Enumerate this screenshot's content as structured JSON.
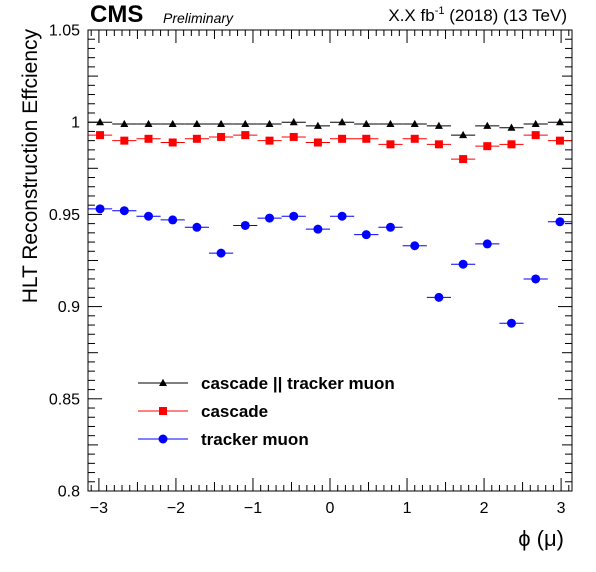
{
  "header": {
    "experiment": "CMS",
    "status": "Preliminary",
    "lumi_prefix": "X.X fb",
    "lumi_exp": "-1",
    "lumi_suffix": " (2018) (13 TeV)"
  },
  "chart_data": {
    "type": "scatter",
    "title": "",
    "xlabel": "ϕ (μ)",
    "ylabel": "HLT Reconstruction Effciency",
    "xlim": [
      -3.14159,
      3.14159
    ],
    "ylim": [
      0.8,
      1.05
    ],
    "xticks": [
      -3,
      -2,
      -1,
      0,
      1,
      2,
      3
    ],
    "xtick_labels": [
      "−3",
      "−2",
      "−1",
      "0",
      "1",
      "2",
      "3"
    ],
    "yticks": [
      0.8,
      0.85,
      0.9,
      0.95,
      1,
      1.05
    ],
    "ytick_labels": [
      "0.8",
      "0.85",
      "0.9",
      "0.95",
      "1",
      "1.05"
    ],
    "x_bin_half_width": 0.157,
    "x": [
      -2.985,
      -2.67,
      -2.356,
      -2.042,
      -1.728,
      -1.414,
      -1.1,
      -0.785,
      -0.471,
      -0.157,
      0.157,
      0.471,
      0.785,
      1.1,
      1.414,
      1.728,
      2.042,
      2.356,
      2.67,
      2.985
    ],
    "legend_position": "bottom-left",
    "grid": false,
    "series": [
      {
        "name": "cascade || tracker muon",
        "color": "#000000",
        "marker": "triangle",
        "values": [
          1.0,
          0.999,
          0.999,
          0.999,
          0.999,
          0.999,
          0.999,
          0.999,
          1.0,
          0.998,
          1.0,
          0.999,
          0.999,
          0.999,
          0.998,
          0.993,
          0.998,
          0.997,
          0.999,
          1.0
        ]
      },
      {
        "name": "cascade",
        "color": "#ff0000",
        "marker": "square",
        "values": [
          0.993,
          0.99,
          0.991,
          0.989,
          0.991,
          0.992,
          0.993,
          0.99,
          0.992,
          0.989,
          0.991,
          0.991,
          0.988,
          0.991,
          0.988,
          0.98,
          0.987,
          0.988,
          0.993,
          0.99
        ]
      },
      {
        "name": "tracker muon",
        "color": "#0000ff",
        "marker": "circle",
        "values": [
          0.953,
          0.952,
          0.949,
          0.947,
          0.943,
          0.929,
          0.944,
          0.948,
          0.949,
          0.942,
          0.949,
          0.939,
          0.943,
          0.933,
          0.905,
          0.923,
          0.934,
          0.891,
          0.915,
          0.946
        ]
      }
    ]
  }
}
